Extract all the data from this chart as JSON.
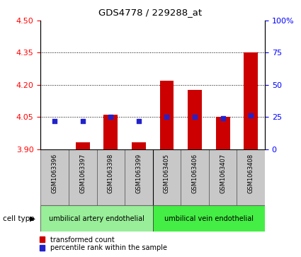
{
  "title": "GDS4778 / 229288_at",
  "categories": [
    "GSM1063396",
    "GSM1063397",
    "GSM1063398",
    "GSM1063399",
    "GSM1063405",
    "GSM1063406",
    "GSM1063407",
    "GSM1063408"
  ],
  "transformed_count": [
    3.9,
    3.93,
    4.06,
    3.93,
    4.22,
    4.175,
    4.05,
    4.35
  ],
  "percentile_rank": [
    22,
    22,
    25,
    22,
    25,
    25,
    24,
    26
  ],
  "ylim_left": [
    3.9,
    4.5
  ],
  "ylim_right": [
    0,
    100
  ],
  "yticks_left": [
    3.9,
    4.05,
    4.2,
    4.35,
    4.5
  ],
  "yticks_right": [
    0,
    25,
    50,
    75,
    100
  ],
  "bar_color": "#cc0000",
  "dot_color": "#2222cc",
  "cell_type_labels": [
    "umbilical artery endothelial",
    "umbilical vein endothelial"
  ],
  "cell_type_color1": "#99ee99",
  "cell_type_color2": "#44ee44",
  "legend_items": [
    "transformed count",
    "percentile rank within the sample"
  ],
  "bar_bottom": 3.9,
  "bar_width": 0.5,
  "dot_size": 22,
  "group1_count": 4,
  "group2_count": 4
}
